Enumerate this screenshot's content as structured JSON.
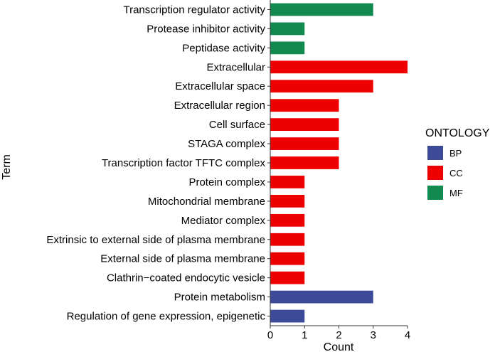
{
  "chart_data": {
    "type": "bar",
    "orientation": "horizontal",
    "xlabel": "Count",
    "ylabel": "Term",
    "xlim": [
      0,
      4
    ],
    "xticks": [
      0,
      1,
      2,
      3,
      4
    ],
    "grid": false,
    "legend": {
      "title": "ONTOLOGY",
      "placement": "right",
      "entries": [
        {
          "name": "BP",
          "color": "#3d4a98"
        },
        {
          "name": "CC",
          "color": "#ef0000"
        },
        {
          "name": "MF",
          "color": "#128a4f"
        }
      ]
    },
    "bars": [
      {
        "term": "Transcription regulator activity",
        "count": 3,
        "ontology": "MF"
      },
      {
        "term": "Protease inhibitor activity",
        "count": 1,
        "ontology": "MF"
      },
      {
        "term": "Peptidase activity",
        "count": 1,
        "ontology": "MF"
      },
      {
        "term": "Extracellular",
        "count": 4,
        "ontology": "CC"
      },
      {
        "term": "Extracellular space",
        "count": 3,
        "ontology": "CC"
      },
      {
        "term": "Extracellular region",
        "count": 2,
        "ontology": "CC"
      },
      {
        "term": "Cell surface",
        "count": 2,
        "ontology": "CC"
      },
      {
        "term": "STAGA complex",
        "count": 2,
        "ontology": "CC"
      },
      {
        "term": "Transcription factor TFTC complex",
        "count": 2,
        "ontology": "CC"
      },
      {
        "term": "Protein complex",
        "count": 1,
        "ontology": "CC"
      },
      {
        "term": "Mitochondrial membrane",
        "count": 1,
        "ontology": "CC"
      },
      {
        "term": "Mediator complex",
        "count": 1,
        "ontology": "CC"
      },
      {
        "term": "Extrinsic to external side of plasma membrane",
        "count": 1,
        "ontology": "CC"
      },
      {
        "term": "External side of plasma membrane",
        "count": 1,
        "ontology": "CC"
      },
      {
        "term": "Clathrin−coated endocytic vesicle",
        "count": 1,
        "ontology": "CC"
      },
      {
        "term": "Protein metabolism",
        "count": 3,
        "ontology": "BP"
      },
      {
        "term": "Regulation of gene expression, epigenetic",
        "count": 1,
        "ontology": "BP"
      }
    ]
  }
}
